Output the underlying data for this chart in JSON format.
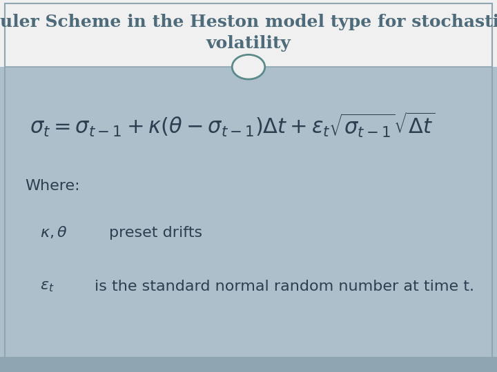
{
  "title": "Euler Scheme in the Heston model type for stochastic\nvolatility",
  "title_color": "#4d6b7a",
  "title_fontsize": 18,
  "bg_color_top": "#f0f0f0",
  "bg_color_main": "#adbfca",
  "bg_color_bottom_strip": "#8fa6b2",
  "border_color": "#8fa6b2",
  "divider_color": "#8fa6b2",
  "circle_color": "#5a8a8a",
  "formula": "$\\sigma_t = \\sigma_{t-1} + \\kappa(\\theta - \\sigma_{t-1})\\Delta t + \\varepsilon_t\\sqrt{\\sigma_{t-1}}\\sqrt{\\Delta t}$",
  "formula_fontsize": 22,
  "where_text": "Where:",
  "where_fontsize": 16,
  "item1_math": "$\\kappa, \\theta$",
  "item1_text": "preset drifts",
  "item2_math": "$\\varepsilon_t$",
  "item2_text": "is the standard normal random number at time t.",
  "item_fontsize": 16,
  "text_color": "#2c3e50"
}
